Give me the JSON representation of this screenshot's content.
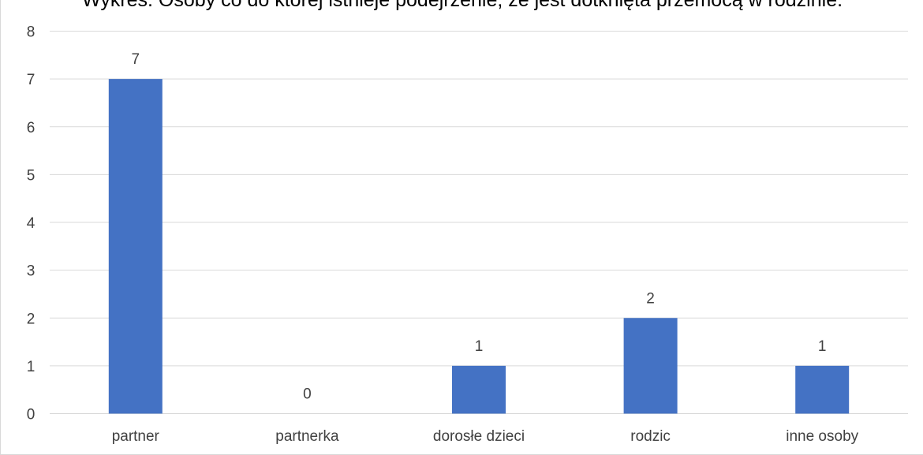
{
  "chart_data": {
    "type": "bar",
    "title": "Wykres. Osoby co do której istnieje podejrzenie, że jest dotknięta przemocą w rodzinie.",
    "categories": [
      "partner",
      "partnerka",
      "dorosłe dzieci",
      "rodzic",
      "inne osoby"
    ],
    "values": [
      7,
      0,
      1,
      2,
      1
    ],
    "data_labels": [
      "7",
      "0",
      "1",
      "2",
      "1"
    ],
    "xlabel": "",
    "ylabel": "",
    "ylim": [
      0,
      8
    ],
    "y_ticks": [
      0,
      1,
      2,
      3,
      4,
      5,
      6,
      7,
      8
    ],
    "grid": true,
    "legend": "none",
    "bar_color": "#4472c4",
    "grid_color": "#d9d9d9",
    "text_color": "#404040"
  }
}
